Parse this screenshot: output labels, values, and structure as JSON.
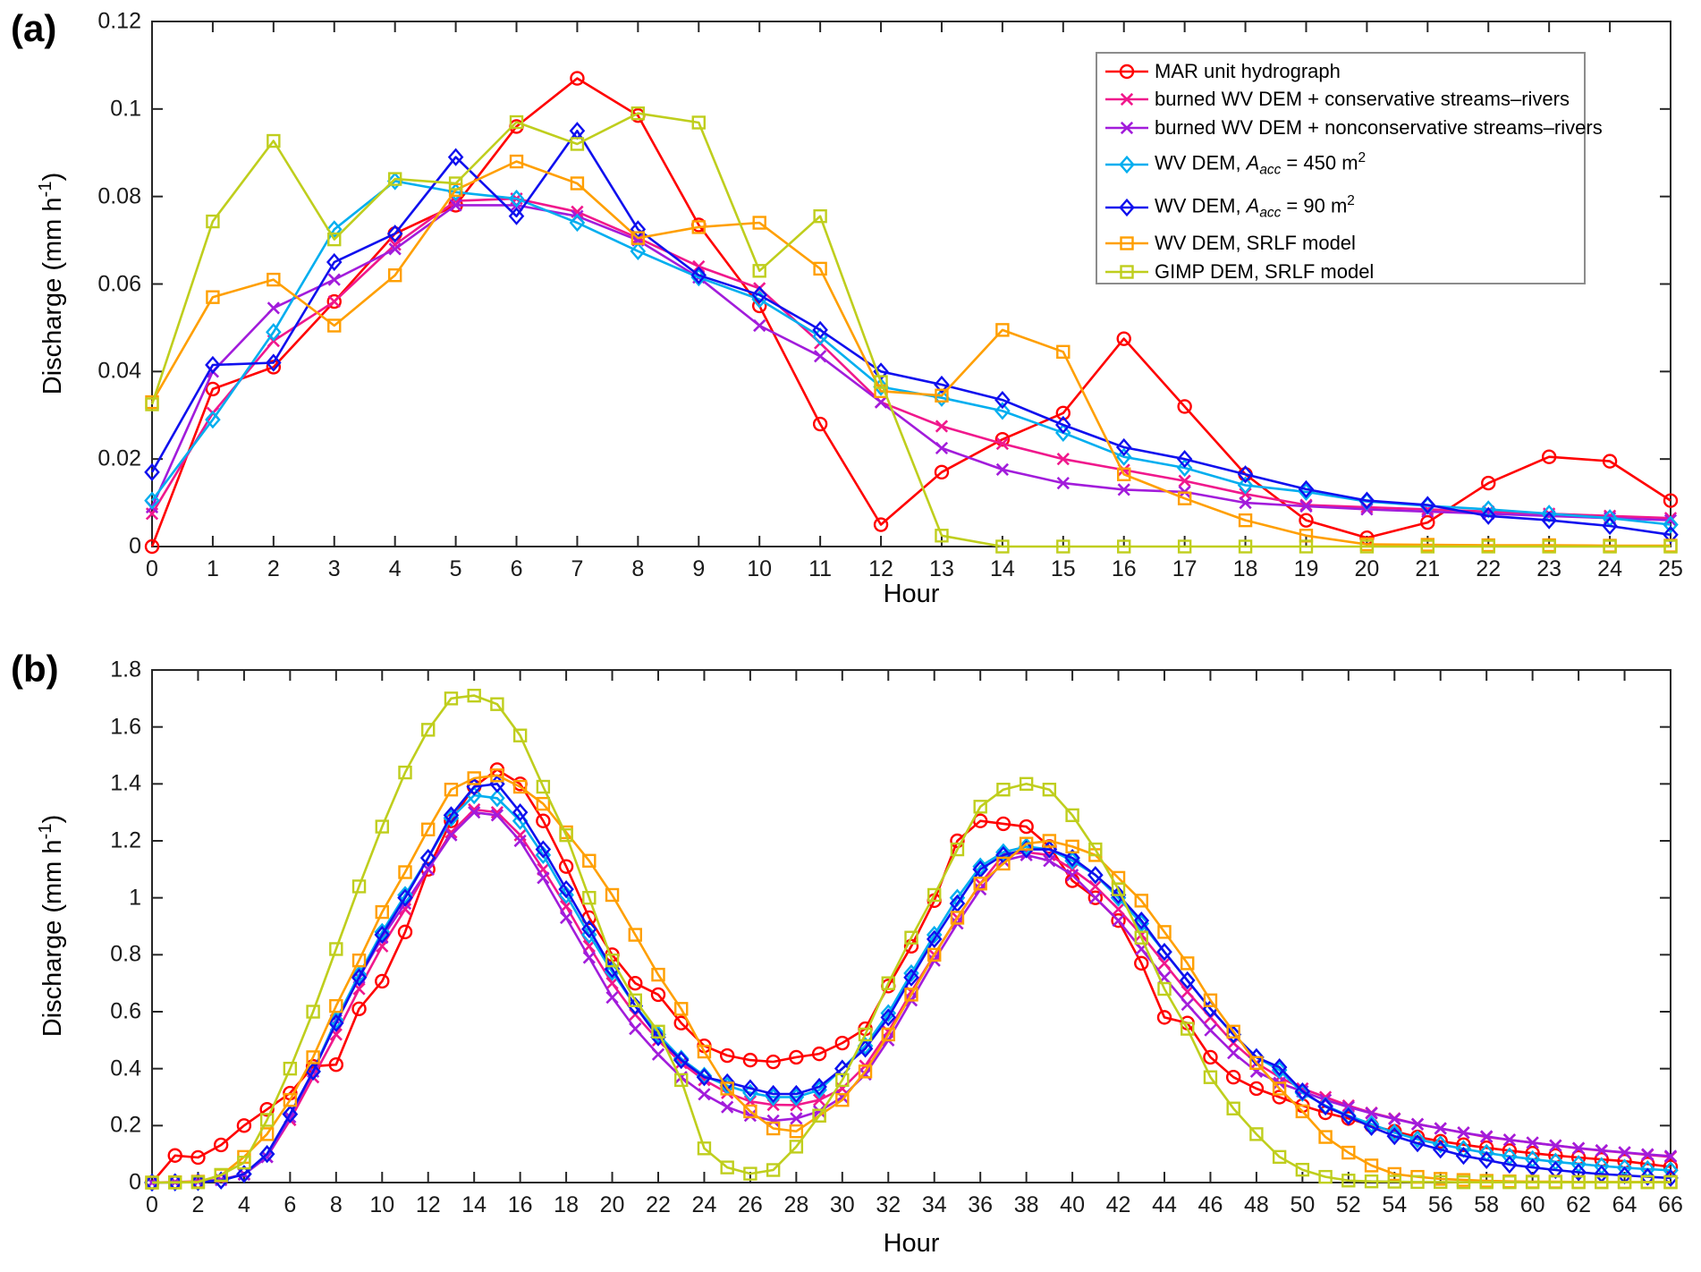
{
  "figure": {
    "panel_a_label": "(a)",
    "panel_b_label": "(b)",
    "background": "#ffffff",
    "axis_color": "#262626"
  },
  "legend": {
    "position": "top-right-panel-a",
    "entries": [
      {
        "label": "MAR unit hydrograph",
        "color": "#ff0000",
        "marker": "circle",
        "parts": [
          {
            "t": "MAR unit hydrograph"
          }
        ]
      },
      {
        "label": "burned WV DEM + conservative streams–rivers",
        "color": "#f0188c",
        "marker": "x",
        "parts": [
          {
            "t": "burned WV DEM + conservative streams–rivers"
          }
        ]
      },
      {
        "label": "burned WV DEM + nonconservative streams–rivers",
        "color": "#a21cdb",
        "marker": "x",
        "parts": [
          {
            "t": "burned WV DEM + nonconservative streams–rivers"
          }
        ]
      },
      {
        "label": "WV DEM, A_acc = 450 m2",
        "color": "#00aeef",
        "marker": "diamond",
        "parts": [
          {
            "t": "WV DEM, "
          },
          {
            "t": "A",
            "i": 1
          },
          {
            "t": "acc",
            "i": 1,
            "sub": 1
          },
          {
            "t": " = 450 m"
          },
          {
            "t": "2",
            "sup": 1
          }
        ]
      },
      {
        "label": "WV DEM, A_acc = 90 m2",
        "color": "#1010ee",
        "marker": "diamond",
        "parts": [
          {
            "t": "WV DEM, "
          },
          {
            "t": "A",
            "i": 1
          },
          {
            "t": "acc",
            "i": 1,
            "sub": 1
          },
          {
            "t": " = 90 m"
          },
          {
            "t": "2",
            "sup": 1
          }
        ]
      },
      {
        "label": "WV DEM, SRLF model",
        "color": "#ff9f00",
        "marker": "square",
        "parts": [
          {
            "t": "WV DEM, SRLF model"
          }
        ]
      },
      {
        "label": "GIMP DEM, SRLF model",
        "color": "#bfce1d",
        "marker": "square",
        "parts": [
          {
            "t": "GIMP DEM, SRLF model"
          }
        ]
      }
    ]
  },
  "chart_data": [
    {
      "type": "line",
      "panel": "a",
      "xlabel": "Hour",
      "ylabel": "Discharge (mm h-1)",
      "ylabel_parts": [
        {
          "t": "Discharge (mm h"
        },
        {
          "t": "-1",
          "sup": 1
        },
        {
          "t": ")"
        }
      ],
      "xlim": [
        0,
        25
      ],
      "ylim": [
        0,
        0.12
      ],
      "xticks": [
        0,
        1,
        2,
        3,
        4,
        5,
        6,
        7,
        8,
        9,
        10,
        11,
        12,
        13,
        14,
        15,
        16,
        17,
        18,
        19,
        20,
        21,
        22,
        23,
        24,
        25
      ],
      "yticks": [
        0,
        0.02,
        0.04,
        0.06,
        0.08,
        0.1,
        0.12
      ],
      "grid": false,
      "x": {
        "start": 0,
        "step": 1,
        "count": 26,
        "unit": "hour"
      },
      "series": [
        {
          "name": "MAR unit hydrograph",
          "color": "#ff0000",
          "marker": "circle",
          "values": [
            0,
            0.036,
            0.041,
            0.056,
            0.0715,
            0.078,
            0.096,
            0.107,
            0.0985,
            0.0735,
            0.055,
            0.028,
            0.005,
            0.017,
            0.0245,
            0.0305,
            0.0475,
            0.032,
            0.0165,
            0.006,
            0.002,
            0.0055,
            0.0145,
            0.0205,
            0.0195,
            0.0105
          ]
        },
        {
          "name": "burned WV DEM + conservative streams–rivers",
          "color": "#f0188c",
          "marker": "x",
          "values": [
            0.0075,
            0.0305,
            0.047,
            0.056,
            0.069,
            0.079,
            0.0795,
            0.0765,
            0.0705,
            0.064,
            0.059,
            0.0465,
            0.033,
            0.0275,
            0.0235,
            0.02,
            0.0175,
            0.015,
            0.012,
            0.0095,
            0.009,
            0.0085,
            0.008,
            0.0075,
            0.007,
            0.0065
          ]
        },
        {
          "name": "burned WV DEM + nonconservative streams–rivers",
          "color": "#a21cdb",
          "marker": "x",
          "values": [
            0.009,
            0.04,
            0.0545,
            0.061,
            0.068,
            0.078,
            0.078,
            0.0755,
            0.07,
            0.0615,
            0.0505,
            0.0435,
            0.033,
            0.0225,
            0.0176,
            0.0145,
            0.013,
            0.0125,
            0.01,
            0.0092,
            0.0085,
            0.008,
            0.0075,
            0.007,
            0.0065,
            0.006
          ]
        },
        {
          "name": "WV DEM, A_acc = 450 m2",
          "color": "#00aeef",
          "marker": "diamond",
          "values": [
            0.0105,
            0.029,
            0.049,
            0.0725,
            0.0835,
            0.081,
            0.0795,
            0.074,
            0.0675,
            0.0615,
            0.0565,
            0.048,
            0.0365,
            0.034,
            0.031,
            0.026,
            0.0205,
            0.018,
            0.014,
            0.0125,
            0.0103,
            0.0093,
            0.0085,
            0.0075,
            0.0065,
            0.005
          ]
        },
        {
          "name": "WV DEM, A_acc = 90 m2",
          "color": "#1010ee",
          "marker": "diamond",
          "values": [
            0.017,
            0.0415,
            0.042,
            0.065,
            0.0715,
            0.089,
            0.0755,
            0.095,
            0.0725,
            0.062,
            0.0575,
            0.0495,
            0.04,
            0.037,
            0.0335,
            0.0278,
            0.0227,
            0.02,
            0.0165,
            0.0131,
            0.0105,
            0.0095,
            0.007,
            0.006,
            0.0047,
            0.0027
          ]
        },
        {
          "name": "WV DEM, SRLF model",
          "color": "#ff9f00",
          "marker": "square",
          "values": [
            0.033,
            0.057,
            0.061,
            0.0505,
            0.062,
            0.0815,
            0.088,
            0.083,
            0.0705,
            0.073,
            0.074,
            0.0635,
            0.0355,
            0.0345,
            0.0495,
            0.0445,
            0.0165,
            0.011,
            0.006,
            0.0025,
            0.0005,
            0.0004,
            0.0003,
            0.0003,
            0.0002,
            0.0002
          ]
        },
        {
          "name": "GIMP DEM, SRLF model",
          "color": "#bfce1d",
          "marker": "square",
          "values": [
            0.0325,
            0.0743,
            0.0927,
            0.0702,
            0.084,
            0.083,
            0.097,
            0.092,
            0.099,
            0.0969,
            0.063,
            0.0755,
            0.0376,
            0.0025,
            0,
            0,
            0,
            0,
            0,
            0,
            0,
            0,
            0,
            0,
            0,
            0
          ]
        }
      ]
    },
    {
      "type": "line",
      "panel": "b",
      "xlabel": "Hour",
      "ylabel": "Discharge (mm h-1)",
      "ylabel_parts": [
        {
          "t": "Discharge (mm h"
        },
        {
          "t": "-1",
          "sup": 1
        },
        {
          "t": ")"
        }
      ],
      "xlim": [
        0,
        66
      ],
      "ylim": [
        0,
        1.8
      ],
      "xticks": [
        0,
        2,
        4,
        6,
        8,
        10,
        12,
        14,
        16,
        18,
        20,
        22,
        24,
        26,
        28,
        30,
        32,
        34,
        36,
        38,
        40,
        42,
        44,
        46,
        48,
        50,
        52,
        54,
        56,
        58,
        60,
        62,
        64,
        66
      ],
      "yticks": [
        0,
        0.2,
        0.4,
        0.6,
        0.8,
        1,
        1.2,
        1.4,
        1.6,
        1.8
      ],
      "grid": false,
      "x": {
        "start": 0,
        "step": 1,
        "count": 67,
        "unit": "hour"
      },
      "series": [
        {
          "name": "MAR unit hydrograph",
          "color": "#ff0000",
          "marker": "circle",
          "values": [
            0,
            0.095,
            0.088,
            0.132,
            0.2,
            0.257,
            0.314,
            0.408,
            0.414,
            0.61,
            0.707,
            0.88,
            1.1,
            1.27,
            1.39,
            1.45,
            1.4,
            1.27,
            1.11,
            0.93,
            0.8,
            0.7,
            0.66,
            0.56,
            0.48,
            0.446,
            0.43,
            0.424,
            0.44,
            0.452,
            0.49,
            0.54,
            0.69,
            0.83,
            0.99,
            1.2,
            1.27,
            1.26,
            1.25,
            1.18,
            1.06,
            1.0,
            0.92,
            0.77,
            0.58,
            0.56,
            0.44,
            0.37,
            0.33,
            0.3,
            0.27,
            0.245,
            0.225,
            0.2,
            0.18,
            0.16,
            0.145,
            0.133,
            0.122,
            0.112,
            0.103,
            0.095,
            0.088,
            0.081,
            0.075,
            0.065,
            0.055
          ]
        },
        {
          "name": "burned WV DEM + conservative streams–rivers",
          "color": "#f0188c",
          "marker": "x",
          "values": [
            0,
            0.002,
            0.004,
            0.01,
            0.03,
            0.09,
            0.22,
            0.37,
            0.52,
            0.68,
            0.83,
            0.96,
            1.1,
            1.23,
            1.31,
            1.3,
            1.22,
            1.1,
            0.97,
            0.83,
            0.7,
            0.59,
            0.5,
            0.42,
            0.36,
            0.315,
            0.285,
            0.273,
            0.272,
            0.29,
            0.33,
            0.41,
            0.53,
            0.67,
            0.8,
            0.93,
            1.05,
            1.15,
            1.16,
            1.15,
            1.1,
            1.04,
            0.96,
            0.87,
            0.77,
            0.67,
            0.58,
            0.49,
            0.42,
            0.37,
            0.33,
            0.3,
            0.27,
            0.245,
            0.225,
            0.205,
            0.19,
            0.175,
            0.16,
            0.15,
            0.14,
            0.13,
            0.12,
            0.112,
            0.105,
            0.097,
            0.09
          ]
        },
        {
          "name": "burned WV DEM + nonconservative streams–rivers",
          "color": "#a21cdb",
          "marker": "x",
          "values": [
            0,
            0.001,
            0.003,
            0.009,
            0.028,
            0.09,
            0.23,
            0.39,
            0.57,
            0.72,
            0.86,
            0.98,
            1.1,
            1.22,
            1.3,
            1.29,
            1.2,
            1.07,
            0.93,
            0.79,
            0.65,
            0.54,
            0.45,
            0.37,
            0.31,
            0.265,
            0.235,
            0.217,
            0.225,
            0.25,
            0.3,
            0.38,
            0.5,
            0.64,
            0.78,
            0.91,
            1.03,
            1.13,
            1.15,
            1.13,
            1.08,
            1.0,
            0.92,
            0.82,
            0.72,
            0.625,
            0.535,
            0.455,
            0.39,
            0.35,
            0.32,
            0.29,
            0.265,
            0.243,
            0.223,
            0.205,
            0.19,
            0.175,
            0.162,
            0.15,
            0.14,
            0.13,
            0.121,
            0.113,
            0.106,
            0.099,
            0.093
          ]
        },
        {
          "name": "WV DEM, A_acc = 450 m2",
          "color": "#00aeef",
          "marker": "diamond",
          "values": [
            0,
            0.001,
            0.002,
            0.007,
            0.03,
            0.1,
            0.24,
            0.39,
            0.57,
            0.73,
            0.88,
            1.01,
            1.14,
            1.28,
            1.36,
            1.35,
            1.27,
            1.15,
            1.01,
            0.87,
            0.74,
            0.62,
            0.52,
            0.435,
            0.375,
            0.34,
            0.315,
            0.3,
            0.3,
            0.325,
            0.4,
            0.48,
            0.595,
            0.735,
            0.87,
            1.0,
            1.11,
            1.16,
            1.18,
            1.17,
            1.13,
            1.08,
            1.0,
            0.91,
            0.81,
            0.71,
            0.61,
            0.52,
            0.44,
            0.395,
            0.315,
            0.27,
            0.235,
            0.205,
            0.175,
            0.152,
            0.134,
            0.118,
            0.104,
            0.092,
            0.082,
            0.073,
            0.065,
            0.058,
            0.052,
            0.047,
            0.043
          ]
        },
        {
          "name": "WV DEM, A_acc = 90 m2",
          "color": "#1010ee",
          "marker": "diamond",
          "values": [
            0,
            0.001,
            0.002,
            0.007,
            0.03,
            0.1,
            0.24,
            0.39,
            0.56,
            0.72,
            0.87,
            1.0,
            1.14,
            1.29,
            1.39,
            1.4,
            1.3,
            1.17,
            1.03,
            0.89,
            0.75,
            0.62,
            0.51,
            0.43,
            0.37,
            0.352,
            0.331,
            0.311,
            0.311,
            0.336,
            0.4,
            0.47,
            0.58,
            0.72,
            0.855,
            0.98,
            1.1,
            1.15,
            1.17,
            1.17,
            1.14,
            1.08,
            1.01,
            0.92,
            0.81,
            0.71,
            0.61,
            0.52,
            0.44,
            0.405,
            0.32,
            0.267,
            0.232,
            0.195,
            0.163,
            0.138,
            0.116,
            0.094,
            0.079,
            0.063,
            0.053,
            0.044,
            0.036,
            0.03,
            0.025,
            0.02,
            0.016
          ]
        },
        {
          "name": "WV DEM, SRLF model",
          "color": "#ff9f00",
          "marker": "square",
          "values": [
            0,
            0.001,
            0.003,
            0.025,
            0.09,
            0.17,
            0.29,
            0.44,
            0.62,
            0.78,
            0.95,
            1.09,
            1.24,
            1.38,
            1.42,
            1.43,
            1.39,
            1.33,
            1.23,
            1.13,
            1.01,
            0.87,
            0.73,
            0.61,
            0.46,
            0.33,
            0.25,
            0.19,
            0.18,
            0.235,
            0.29,
            0.39,
            0.52,
            0.66,
            0.8,
            0.93,
            1.05,
            1.12,
            1.19,
            1.2,
            1.18,
            1.15,
            1.07,
            0.99,
            0.88,
            0.77,
            0.64,
            0.53,
            0.42,
            0.33,
            0.25,
            0.16,
            0.105,
            0.06,
            0.03,
            0.02,
            0.013,
            0.009,
            0.006,
            0.004,
            0.003,
            0.003,
            0.002,
            0.002,
            0.002,
            0.002,
            0.002
          ]
        },
        {
          "name": "GIMP DEM, SRLF model",
          "color": "#bfce1d",
          "marker": "square",
          "values": [
            0,
            0,
            0.001,
            0.027,
            0.07,
            0.22,
            0.4,
            0.6,
            0.82,
            1.04,
            1.25,
            1.44,
            1.59,
            1.7,
            1.71,
            1.68,
            1.57,
            1.39,
            1.22,
            1.0,
            0.78,
            0.64,
            0.53,
            0.36,
            0.12,
            0.053,
            0.031,
            0.044,
            0.126,
            0.235,
            0.36,
            0.52,
            0.7,
            0.86,
            1.01,
            1.17,
            1.32,
            1.38,
            1.4,
            1.38,
            1.29,
            1.17,
            1.03,
            0.86,
            0.68,
            0.54,
            0.37,
            0.26,
            0.17,
            0.09,
            0.045,
            0.02,
            0.007,
            0.004,
            0.003,
            0.002,
            0.002,
            0.001,
            0.001,
            0.001,
            0.001,
            0.001,
            0.001,
            0.001,
            0.001,
            0.001,
            0.001
          ]
        }
      ]
    }
  ]
}
